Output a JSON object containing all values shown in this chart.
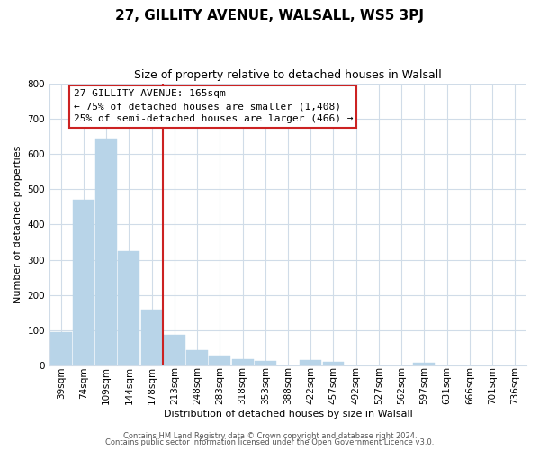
{
  "title": "27, GILLITY AVENUE, WALSALL, WS5 3PJ",
  "subtitle": "Size of property relative to detached houses in Walsall",
  "xlabel": "Distribution of detached houses by size in Walsall",
  "ylabel": "Number of detached properties",
  "footer_line1": "Contains HM Land Registry data © Crown copyright and database right 2024.",
  "footer_line2": "Contains public sector information licensed under the Open Government Licence v3.0.",
  "bar_labels": [
    "39sqm",
    "74sqm",
    "109sqm",
    "144sqm",
    "178sqm",
    "213sqm",
    "248sqm",
    "283sqm",
    "318sqm",
    "353sqm",
    "388sqm",
    "422sqm",
    "457sqm",
    "492sqm",
    "527sqm",
    "562sqm",
    "597sqm",
    "631sqm",
    "666sqm",
    "701sqm",
    "736sqm"
  ],
  "bar_values": [
    95,
    470,
    645,
    325,
    158,
    88,
    43,
    27,
    18,
    12,
    0,
    15,
    10,
    0,
    0,
    0,
    8,
    0,
    0,
    0,
    0
  ],
  "bar_color_normal": "#b8d4e8",
  "red_line_index": 4,
  "ylim": [
    0,
    800
  ],
  "yticks": [
    0,
    100,
    200,
    300,
    400,
    500,
    600,
    700,
    800
  ],
  "annotation_title": "27 GILLITY AVENUE: 165sqm",
  "annotation_line2": "← 75% of detached houses are smaller (1,408)",
  "annotation_line3": "25% of semi-detached houses are larger (466) →",
  "grid_color": "#d0dce8",
  "red_color": "#cc2222",
  "title_fontsize": 11,
  "subtitle_fontsize": 9,
  "axis_label_fontsize": 8,
  "tick_fontsize": 7.5,
  "annotation_fontsize": 8,
  "footer_fontsize": 6
}
